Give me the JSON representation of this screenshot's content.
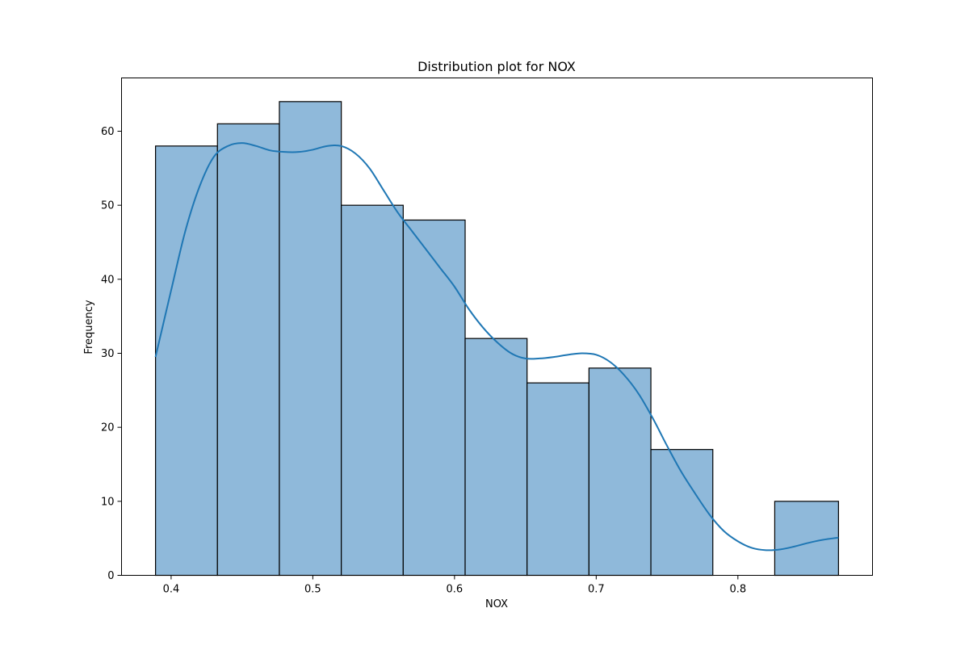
{
  "chart_data": {
    "type": "bar",
    "title": "Distribution plot for NOX",
    "xlabel": "NOX",
    "ylabel": "Frequency",
    "xlim": [
      0.365,
      0.895
    ],
    "ylim": [
      0,
      67.2
    ],
    "x_ticks": [
      0.4,
      0.5,
      0.6,
      0.7,
      0.8
    ],
    "x_tick_labels": [
      "0.4",
      "0.5",
      "0.6",
      "0.7",
      "0.8"
    ],
    "y_ticks": [
      0,
      10,
      20,
      30,
      40,
      50,
      60
    ],
    "y_tick_labels": [
      "0",
      "10",
      "20",
      "30",
      "40",
      "50",
      "60"
    ],
    "bin_edges": [
      0.389,
      0.4327,
      0.4764,
      0.5201,
      0.5638,
      0.6075,
      0.6512,
      0.6949,
      0.7386,
      0.7823,
      0.826,
      0.871
    ],
    "values": [
      58,
      61,
      64,
      50,
      48,
      32,
      26,
      28,
      17,
      0,
      10
    ],
    "kde": {
      "x": [
        0.389,
        0.4,
        0.41,
        0.42,
        0.43,
        0.44,
        0.45,
        0.46,
        0.47,
        0.48,
        0.49,
        0.5,
        0.51,
        0.52,
        0.53,
        0.54,
        0.55,
        0.56,
        0.57,
        0.58,
        0.59,
        0.6,
        0.61,
        0.62,
        0.63,
        0.64,
        0.65,
        0.66,
        0.67,
        0.68,
        0.69,
        0.7,
        0.71,
        0.72,
        0.73,
        0.74,
        0.75,
        0.76,
        0.77,
        0.78,
        0.79,
        0.8,
        0.81,
        0.82,
        0.83,
        0.84,
        0.85,
        0.86,
        0.871
      ],
      "y": [
        29.5,
        38.5,
        46.5,
        52.5,
        56.5,
        58.0,
        58.4,
        58.0,
        57.4,
        57.2,
        57.2,
        57.5,
        58.0,
        58.0,
        57.0,
        55.0,
        52.0,
        49.0,
        46.5,
        44.0,
        41.5,
        39.0,
        36.0,
        33.5,
        31.5,
        30.0,
        29.3,
        29.3,
        29.5,
        29.8,
        30.0,
        29.8,
        28.8,
        27.0,
        24.5,
        21.2,
        17.5,
        14.0,
        11.0,
        8.2,
        6.0,
        4.6,
        3.7,
        3.4,
        3.5,
        3.9,
        4.4,
        4.8,
        5.1
      ]
    },
    "bar_color": "#8fb9da",
    "bar_edge_color": "#000000",
    "kde_color": "#1f77b4",
    "grid": false,
    "legend": "none"
  }
}
